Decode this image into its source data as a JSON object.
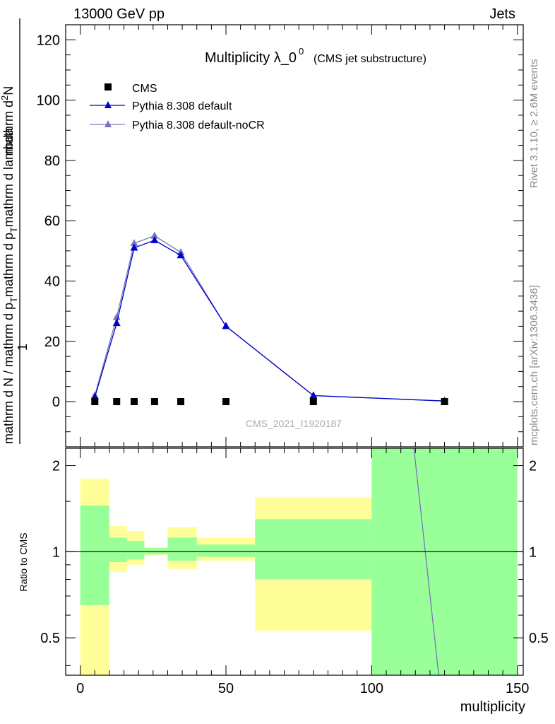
{
  "header": {
    "energy_label": "13000 GeV pp",
    "category_label": "Jets",
    "rivet_label": "Rivet 3.1.10, ≥ 2.6M events",
    "mcplots_label": "mcplots.cern.ch [arXiv:1306.3436]",
    "analysis_id": "CMS_2021_I1920187"
  },
  "colors": {
    "data": "#000000",
    "pythia_default": "#0000cc",
    "pythia_nocr": "#7777bb",
    "band_inner": "#99ff99",
    "band_outer": "#ffff99"
  },
  "chart_data": [
    {
      "type": "scatter",
      "title": "Multiplicity λ_0",
      "title_superscript": "0",
      "subtitle": "(CMS jet substructure)",
      "ylabel": "1 / mathrm d N / mathrm d p_T mathrm d p_T mathrm d lambda mathrm d²N",
      "ylabel_lines": [
        "1",
        "mathrm d N / mathrm d p",
        "T",
        "mathrm d p",
        "T",
        "mathrm d lambda",
        "mathrm d",
        "2",
        "N"
      ],
      "xlim": [
        -5,
        152
      ],
      "ylim": [
        -15,
        125
      ],
      "yticks": [
        0,
        20,
        40,
        60,
        80,
        100,
        120
      ],
      "grid": false,
      "legend_position": "top-left",
      "series": [
        {
          "name": "CMS",
          "marker": "square",
          "x": [
            5,
            12.5,
            18.5,
            25.5,
            34.5,
            50,
            80,
            125
          ],
          "y": [
            0,
            0,
            0,
            0,
            0,
            0,
            0,
            0
          ]
        },
        {
          "name": "Pythia 8.308 default",
          "marker": "triangle",
          "x": [
            5,
            12.5,
            18.5,
            25.5,
            34.5,
            50,
            80,
            125
          ],
          "y": [
            1.5,
            26,
            51,
            53.5,
            48.5,
            25,
            2,
            0.2
          ]
        },
        {
          "name": "Pythia 8.308 default-noCR",
          "marker": "triangle",
          "x": [
            5,
            12.5,
            18.5,
            25.5,
            34.5,
            50,
            80,
            125
          ],
          "y": [
            2,
            28,
            52.5,
            55,
            49.5,
            25,
            2,
            0.2
          ]
        }
      ]
    },
    {
      "type": "area",
      "ylabel": "Ratio to CMS",
      "xlabel": "multiplicity",
      "xlim": [
        -5,
        152
      ],
      "xticks": [
        0,
        50,
        100,
        150
      ],
      "ylim": [
        0.37,
        2.3
      ],
      "log_y": true,
      "yticks": [
        0.5,
        1,
        2
      ],
      "reference_line": 1,
      "bands": [
        {
          "x0": 0,
          "x1": 10,
          "inner": [
            0.65,
            1.45
          ],
          "outer": [
            0.35,
            1.8
          ]
        },
        {
          "x0": 10,
          "x1": 16,
          "inner": [
            0.92,
            1.12
          ],
          "outer": [
            0.85,
            1.23
          ]
        },
        {
          "x0": 16,
          "x1": 22,
          "inner": [
            0.94,
            1.09
          ],
          "outer": [
            0.9,
            1.18
          ]
        },
        {
          "x0": 22,
          "x1": 30,
          "inner": [
            0.98,
            1.03
          ],
          "outer": [
            0.97,
            1.04
          ]
        },
        {
          "x0": 30,
          "x1": 40,
          "inner": [
            0.93,
            1.12
          ],
          "outer": [
            0.87,
            1.22
          ]
        },
        {
          "x0": 40,
          "x1": 60,
          "inner": [
            0.96,
            1.06
          ],
          "outer": [
            0.93,
            1.12
          ]
        },
        {
          "x0": 60,
          "x1": 100,
          "inner": [
            0.8,
            1.3
          ],
          "outer": [
            0.53,
            1.55
          ]
        },
        {
          "x0": 100,
          "x1": 150,
          "inner": [
            0.2,
            5.0
          ],
          "outer": [
            0.2,
            5.0
          ]
        }
      ],
      "series": [
        {
          "name": "Pythia 8.308 default",
          "x": [
            114.5,
            123
          ],
          "y": [
            2.3,
            0.37
          ]
        }
      ]
    }
  ]
}
